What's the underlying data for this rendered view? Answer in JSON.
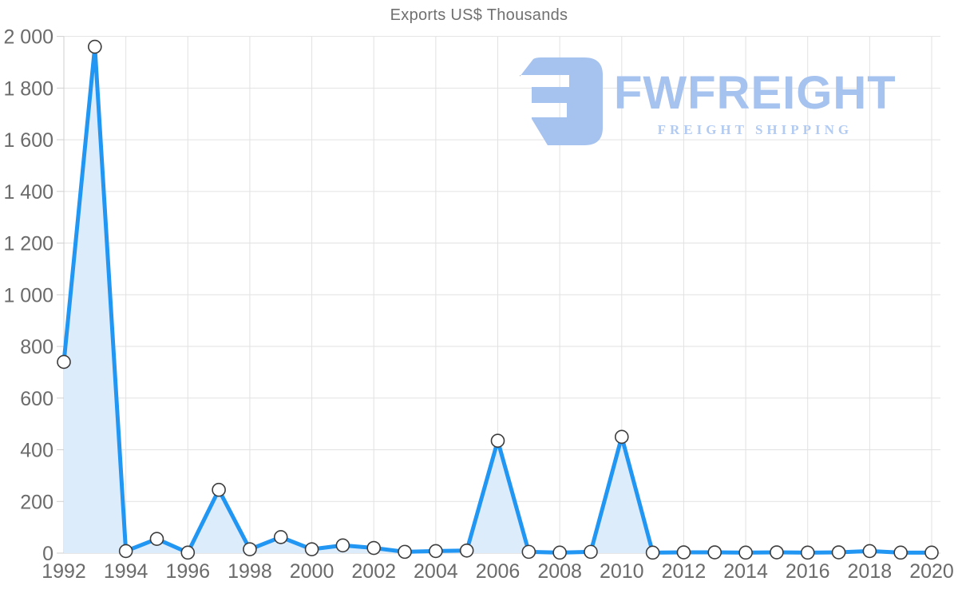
{
  "page": {
    "background": "#ffffff"
  },
  "chart_data": {
    "type": "area",
    "title": "Exports US$ Thousands",
    "xlabel": "",
    "ylabel": "",
    "x": [
      1992,
      1993,
      1994,
      1995,
      1996,
      1997,
      1998,
      1999,
      2000,
      2001,
      2002,
      2003,
      2004,
      2005,
      2006,
      2007,
      2008,
      2009,
      2010,
      2011,
      2012,
      2013,
      2014,
      2015,
      2016,
      2017,
      2018,
      2019,
      2020
    ],
    "values": [
      740,
      1960,
      8,
      55,
      2,
      245,
      15,
      62,
      15,
      30,
      20,
      5,
      8,
      10,
      435,
      5,
      2,
      5,
      450,
      2,
      3,
      3,
      2,
      3,
      2,
      3,
      8,
      2,
      2
    ],
    "ylim": [
      0,
      2000
    ],
    "y_ticks": [
      0,
      200,
      400,
      600,
      800,
      1000,
      1200,
      1400,
      1600,
      1800,
      2000
    ],
    "y_tick_labels": [
      "0",
      "200",
      "400",
      "600",
      "800",
      "1 000",
      "1 200",
      "1 400",
      "1 600",
      "1 800",
      "2 000"
    ],
    "x_ticks": [
      1992,
      1994,
      1996,
      1998,
      2000,
      2002,
      2004,
      2006,
      2008,
      2010,
      2012,
      2014,
      2016,
      2018,
      2020
    ],
    "x_tick_labels": [
      "1992",
      "1994",
      "1996",
      "1998",
      "2000",
      "2002",
      "2004",
      "2006",
      "2008",
      "2010",
      "2012",
      "2014",
      "2016",
      "2018",
      "2020"
    ],
    "grid": true,
    "legend": "none",
    "colors": {
      "line": "#2196f3",
      "area_fill": "#ddecfb",
      "marker_fill": "#ffffff",
      "marker_stroke": "#3c3c3c",
      "grid": "#e2e2e2",
      "axis": "#cfcfcf",
      "tick_label": "#6b6b6b",
      "title": "#707070"
    }
  },
  "logo": {
    "brand": "FWFREIGHT",
    "tagline": "FREIGHT SHIPPING",
    "icon": "fwfreight-mark",
    "color": "#a6c2ef",
    "tagline_color": "#b2cbf3"
  }
}
